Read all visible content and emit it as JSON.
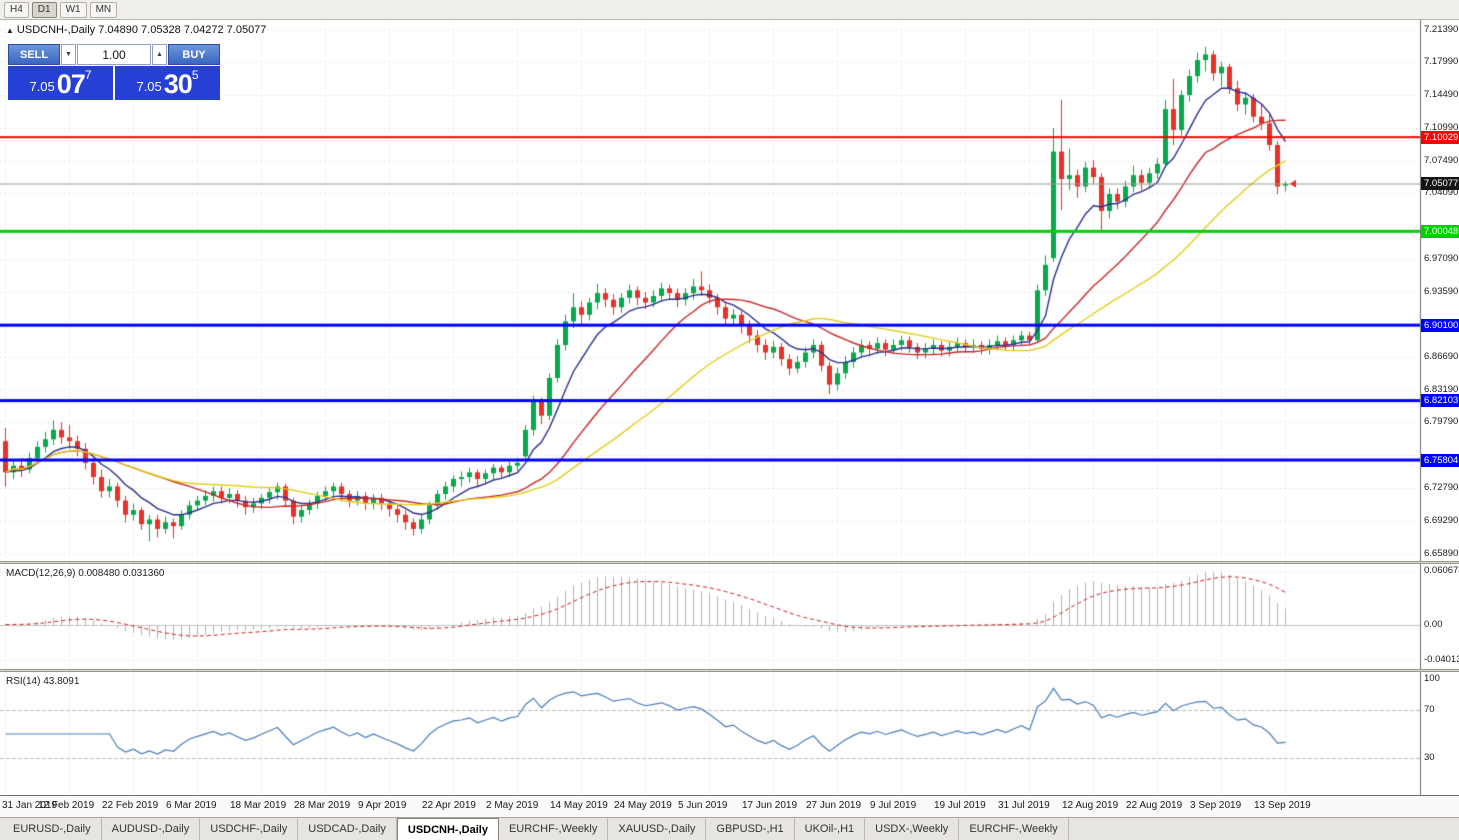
{
  "toolbar": {
    "buttons": [
      "H4",
      "D1",
      "W1",
      "MN"
    ],
    "active_index": 1
  },
  "chart": {
    "title": "USDCNH-,Daily 7.04890 7.05328 7.04272 7.05077"
  },
  "trade_panel": {
    "sell_label": "SELL",
    "buy_label": "BUY",
    "volume": "1.00",
    "sell_price": {
      "small": "7.05",
      "big": "07",
      "sup": "7"
    },
    "buy_price": {
      "small": "7.05",
      "big": "30",
      "sup": "5"
    }
  },
  "icons": {
    "collapse": "▲",
    "caret_down": "▼",
    "caret_up": "▲"
  },
  "chart_data": {
    "type": "candlestick",
    "symbol": "USDCNH-",
    "timeframe": "Daily",
    "current": {
      "open": "7.04890",
      "high": "7.05328",
      "low": "7.04272",
      "close": "7.05077"
    },
    "ylim": [
      6.651,
      7.2245
    ],
    "candle_colors": {
      "bull": "#09a84e",
      "bear": "#e5332a"
    },
    "y_axis_labels": [
      {
        "text": "7.21390",
        "value": 7.2139
      },
      {
        "text": "7.17990",
        "value": 7.1799
      },
      {
        "text": "7.14490",
        "value": 7.1449
      },
      {
        "text": "7.10990",
        "value": 7.1099
      },
      {
        "text": "7.07490",
        "value": 7.0749
      },
      {
        "text": "7.04090",
        "value": 7.0409
      },
      {
        "text": "6.97090",
        "value": 6.9709
      },
      {
        "text": "6.93590",
        "value": 6.9359
      },
      {
        "text": "6.86690",
        "value": 6.8669
      },
      {
        "text": "6.83190",
        "value": 6.8319
      },
      {
        "text": "6.79790",
        "value": 6.7979
      },
      {
        "text": "6.72790",
        "value": 6.7279
      },
      {
        "text": "6.69290",
        "value": 6.6929
      },
      {
        "text": "6.65890",
        "value": 6.6589
      }
    ],
    "y_grid": [
      7.2139,
      7.1799,
      7.1449,
      7.1099,
      7.0749,
      7.0409,
      7.0059,
      6.9709,
      6.9359,
      6.9009,
      6.8669,
      6.8319,
      6.7979,
      6.7629,
      6.7279,
      6.6929,
      6.6589
    ],
    "x_axis_labels": [
      {
        "text": "31 Jan 2019",
        "bar": 0
      },
      {
        "text": "12 Feb 2019",
        "bar": 8
      },
      {
        "text": "22 Feb 2019",
        "bar": 16
      },
      {
        "text": "6 Mar 2019",
        "bar": 24
      },
      {
        "text": "18 Mar 2019",
        "bar": 32
      },
      {
        "text": "28 Mar 2019",
        "bar": 40
      },
      {
        "text": "9 Apr 2019",
        "bar": 48
      },
      {
        "text": "22 Apr 2019",
        "bar": 56
      },
      {
        "text": "2 May 2019",
        "bar": 64
      },
      {
        "text": "14 May 2019",
        "bar": 72
      },
      {
        "text": "24 May 2019",
        "bar": 80
      },
      {
        "text": "5 Jun 2019",
        "bar": 88
      },
      {
        "text": "17 Jun 2019",
        "bar": 96
      },
      {
        "text": "27 Jun 2019",
        "bar": 104
      },
      {
        "text": "9 Jul 2019",
        "bar": 112
      },
      {
        "text": "19 Jul 2019",
        "bar": 120
      },
      {
        "text": "31 Jul 2019",
        "bar": 128
      },
      {
        "text": "12 Aug 2019",
        "bar": 136
      },
      {
        "text": "22 Aug 2019",
        "bar": 144
      },
      {
        "text": "3 Sep 2019",
        "bar": 152
      },
      {
        "text": "13 Sep 2019",
        "bar": 160
      }
    ],
    "levels": [
      {
        "label": "7.10029",
        "value": 7.10029,
        "color": "#ff0000",
        "width": 2
      },
      {
        "label": "7.00048",
        "value": 7.00048,
        "color": "#00cf00",
        "width": 3
      },
      {
        "label": "6.90100",
        "value": 6.901,
        "color": "#0000ff",
        "width": 3
      },
      {
        "label": "6.82103",
        "value": 6.82103,
        "color": "#0000ff",
        "width": 3
      },
      {
        "label": "6.75804",
        "value": 6.75804,
        "color": "#0000ff",
        "width": 3
      }
    ],
    "current_price_tag": {
      "label": "7.05077",
      "value": 7.05077,
      "bg": "#141414"
    },
    "overlays": [
      {
        "name": "ma-fast",
        "method": "ema",
        "period": 8,
        "color": "#2a3190"
      },
      {
        "name": "ma-mid",
        "method": "sma",
        "period": 20,
        "color": "#cc2a2a"
      },
      {
        "name": "ma-slow",
        "method": "sma",
        "period": 34,
        "color": "#e3cf1c"
      }
    ],
    "indicators": {
      "macd": {
        "label": "MACD(12,26,9) 0.008480 0.031360",
        "fast": 12,
        "slow": 26,
        "signal": 9,
        "axis": [
          {
            "text": "0.060674",
            "value": 0.060674
          },
          {
            "text": "0.00",
            "value": 0
          },
          {
            "text": "-0.040132",
            "value": -0.040132
          }
        ],
        "range": [
          -0.0503,
          0.0686
        ],
        "hist_color": "#b4b4b4",
        "signal_color": "#cc2222"
      },
      "rsi": {
        "label": "RSI(14) 43.8091",
        "period": 14,
        "value": 43.8091,
        "axis": [
          {
            "text": "100",
            "value": 100
          },
          {
            "text": "70",
            "value": 70
          },
          {
            "text": "30",
            "value": 30
          }
        ],
        "levels": [
          70,
          30
        ],
        "line_color": "#4a7ebb"
      }
    },
    "candles": [
      [
        6.778,
        6.792,
        6.73,
        6.745
      ],
      [
        6.745,
        6.758,
        6.738,
        6.752
      ],
      [
        6.752,
        6.76,
        6.74,
        6.748
      ],
      [
        6.748,
        6.766,
        6.744,
        6.76
      ],
      [
        6.76,
        6.778,
        6.755,
        6.772
      ],
      [
        6.772,
        6.788,
        6.766,
        6.78
      ],
      [
        6.78,
        6.8,
        6.774,
        6.79
      ],
      [
        6.79,
        6.798,
        6.775,
        6.782
      ],
      [
        6.782,
        6.795,
        6.77,
        6.778
      ],
      [
        6.778,
        6.784,
        6.762,
        6.77
      ],
      [
        6.77,
        6.776,
        6.748,
        6.755
      ],
      [
        6.755,
        6.76,
        6.732,
        6.74
      ],
      [
        6.74,
        6.748,
        6.718,
        6.725
      ],
      [
        6.725,
        6.738,
        6.718,
        6.73
      ],
      [
        6.73,
        6.734,
        6.708,
        6.715
      ],
      [
        6.715,
        6.72,
        6.692,
        6.7
      ],
      [
        6.7,
        6.712,
        6.694,
        6.705
      ],
      [
        6.705,
        6.708,
        6.684,
        6.69
      ],
      [
        6.69,
        6.7,
        6.672,
        6.695
      ],
      [
        6.695,
        6.7,
        6.676,
        6.685
      ],
      [
        6.685,
        6.698,
        6.68,
        6.692
      ],
      [
        6.692,
        6.696,
        6.675,
        6.688
      ],
      [
        6.688,
        6.705,
        6.684,
        6.7
      ],
      [
        6.7,
        6.715,
        6.695,
        6.71
      ],
      [
        6.71,
        6.72,
        6.704,
        6.715
      ],
      [
        6.715,
        6.726,
        6.71,
        6.72
      ],
      [
        6.72,
        6.73,
        6.714,
        6.725
      ],
      [
        6.725,
        6.73,
        6.712,
        6.718
      ],
      [
        6.718,
        6.728,
        6.712,
        6.722
      ],
      [
        6.722,
        6.726,
        6.708,
        6.715
      ],
      [
        6.715,
        6.72,
        6.7,
        6.708
      ],
      [
        6.708,
        6.718,
        6.702,
        6.712
      ],
      [
        6.712,
        6.722,
        6.706,
        6.718
      ],
      [
        6.718,
        6.728,
        6.712,
        6.724
      ],
      [
        6.724,
        6.734,
        6.716,
        6.73
      ],
      [
        6.73,
        6.733,
        6.708,
        6.715
      ],
      [
        6.715,
        6.718,
        6.69,
        6.698
      ],
      [
        6.698,
        6.71,
        6.692,
        6.705
      ],
      [
        6.705,
        6.716,
        6.7,
        6.712
      ],
      [
        6.712,
        6.724,
        6.706,
        6.72
      ],
      [
        6.72,
        6.73,
        6.714,
        6.725
      ],
      [
        6.725,
        6.734,
        6.718,
        6.73
      ],
      [
        6.73,
        6.734,
        6.714,
        6.722
      ],
      [
        6.722,
        6.726,
        6.708,
        6.715
      ],
      [
        6.715,
        6.725,
        6.71,
        6.72
      ],
      [
        6.72,
        6.724,
        6.705,
        6.712
      ],
      [
        6.712,
        6.722,
        6.706,
        6.718
      ],
      [
        6.718,
        6.722,
        6.705,
        6.712
      ],
      [
        6.712,
        6.716,
        6.698,
        6.706
      ],
      [
        6.706,
        6.71,
        6.692,
        6.7
      ],
      [
        6.7,
        6.705,
        6.684,
        6.692
      ],
      [
        6.692,
        6.696,
        6.678,
        6.685
      ],
      [
        6.685,
        6.7,
        6.68,
        6.695
      ],
      [
        6.695,
        6.714,
        6.69,
        6.71
      ],
      [
        6.71,
        6.726,
        6.705,
        6.722
      ],
      [
        6.722,
        6.735,
        6.716,
        6.73
      ],
      [
        6.73,
        6.742,
        6.724,
        6.738
      ],
      [
        6.738,
        6.746,
        6.73,
        6.74
      ],
      [
        6.74,
        6.75,
        6.734,
        6.745
      ],
      [
        6.745,
        6.748,
        6.73,
        6.738
      ],
      [
        6.738,
        6.748,
        6.732,
        6.744
      ],
      [
        6.744,
        6.754,
        6.738,
        6.75
      ],
      [
        6.75,
        6.753,
        6.738,
        6.745
      ],
      [
        6.745,
        6.756,
        6.74,
        6.752
      ],
      [
        6.752,
        6.76,
        6.746,
        6.755
      ],
      [
        6.762,
        6.795,
        6.758,
        6.79
      ],
      [
        6.79,
        6.826,
        6.784,
        6.82
      ],
      [
        6.82,
        6.824,
        6.796,
        6.805
      ],
      [
        6.805,
        6.85,
        6.8,
        6.845
      ],
      [
        6.845,
        6.886,
        6.84,
        6.88
      ],
      [
        6.88,
        6.912,
        6.874,
        6.905
      ],
      [
        6.905,
        6.935,
        6.898,
        6.92
      ],
      [
        6.92,
        6.926,
        6.9,
        6.912
      ],
      [
        6.912,
        6.93,
        6.906,
        6.925
      ],
      [
        6.925,
        6.945,
        6.918,
        6.935
      ],
      [
        6.935,
        6.94,
        6.92,
        6.928
      ],
      [
        6.928,
        6.934,
        6.912,
        6.92
      ],
      [
        6.92,
        6.935,
        6.914,
        6.93
      ],
      [
        6.93,
        6.944,
        6.924,
        6.938
      ],
      [
        6.938,
        6.942,
        6.922,
        6.93
      ],
      [
        6.93,
        6.936,
        6.918,
        6.925
      ],
      [
        6.925,
        6.938,
        6.92,
        6.932
      ],
      [
        6.932,
        6.946,
        6.926,
        6.94
      ],
      [
        6.94,
        6.944,
        6.928,
        6.935
      ],
      [
        6.935,
        6.94,
        6.92,
        6.928
      ],
      [
        6.928,
        6.94,
        6.922,
        6.935
      ],
      [
        6.935,
        6.95,
        6.928,
        6.942
      ],
      [
        6.942,
        6.958,
        6.932,
        6.938
      ],
      [
        6.938,
        6.944,
        6.924,
        6.93
      ],
      [
        6.93,
        6.934,
        6.912,
        6.92
      ],
      [
        6.92,
        6.926,
        6.9,
        6.908
      ],
      [
        6.908,
        6.918,
        6.902,
        6.912
      ],
      [
        6.912,
        6.916,
        6.892,
        6.9
      ],
      [
        6.9,
        6.906,
        6.882,
        6.89
      ],
      [
        6.89,
        6.896,
        6.872,
        6.88
      ],
      [
        6.88,
        6.886,
        6.864,
        6.872
      ],
      [
        6.872,
        6.884,
        6.866,
        6.878
      ],
      [
        6.878,
        6.882,
        6.858,
        6.865
      ],
      [
        6.865,
        6.87,
        6.848,
        6.855
      ],
      [
        6.855,
        6.868,
        6.85,
        6.862
      ],
      [
        6.862,
        6.878,
        6.856,
        6.872
      ],
      [
        6.872,
        6.886,
        6.866,
        6.88
      ],
      [
        6.88,
        6.884,
        6.852,
        6.858
      ],
      [
        6.858,
        6.862,
        6.828,
        6.838
      ],
      [
        6.838,
        6.856,
        6.832,
        6.85
      ],
      [
        6.85,
        6.868,
        6.844,
        6.862
      ],
      [
        6.862,
        6.878,
        6.856,
        6.872
      ],
      [
        6.872,
        6.886,
        6.866,
        6.88
      ],
      [
        6.88,
        6.884,
        6.868,
        6.876
      ],
      [
        6.876,
        6.888,
        6.87,
        6.882
      ],
      [
        6.882,
        6.886,
        6.868,
        6.875
      ],
      [
        6.875,
        6.886,
        6.87,
        6.88
      ],
      [
        6.88,
        6.89,
        6.874,
        6.885
      ],
      [
        6.885,
        6.889,
        6.872,
        6.878
      ],
      [
        6.878,
        6.882,
        6.865,
        6.872
      ],
      [
        6.872,
        6.882,
        6.866,
        6.876
      ],
      [
        6.876,
        6.886,
        6.87,
        6.88
      ],
      [
        6.88,
        6.884,
        6.868,
        6.874
      ],
      [
        6.874,
        6.884,
        6.868,
        6.878
      ],
      [
        6.878,
        6.888,
        6.872,
        6.882
      ],
      [
        6.882,
        6.886,
        6.872,
        6.878
      ],
      [
        6.878,
        6.886,
        6.872,
        6.88
      ],
      [
        6.88,
        6.884,
        6.87,
        6.876
      ],
      [
        6.876,
        6.886,
        6.87,
        6.88
      ],
      [
        6.88,
        6.89,
        6.874,
        6.884
      ],
      [
        6.884,
        6.888,
        6.874,
        6.88
      ],
      [
        6.88,
        6.89,
        6.874,
        6.885
      ],
      [
        6.885,
        6.895,
        6.879,
        6.89
      ],
      [
        6.89,
        6.894,
        6.88,
        6.885
      ],
      [
        6.885,
        6.944,
        6.882,
        6.938
      ],
      [
        6.938,
        6.975,
        6.932,
        6.965
      ],
      [
        6.972,
        7.11,
        6.968,
        7.085
      ],
      [
        7.085,
        7.14,
        7.023,
        7.056
      ],
      [
        7.056,
        7.088,
        7.044,
        7.06
      ],
      [
        7.06,
        7.066,
        7.036,
        7.048
      ],
      [
        7.048,
        7.074,
        7.042,
        7.068
      ],
      [
        7.068,
        7.076,
        7.05,
        7.058
      ],
      [
        7.058,
        7.062,
        7.0,
        7.022
      ],
      [
        7.022,
        7.046,
        7.014,
        7.04
      ],
      [
        7.04,
        7.046,
        7.024,
        7.032
      ],
      [
        7.032,
        7.054,
        7.026,
        7.048
      ],
      [
        7.048,
        7.07,
        7.042,
        7.06
      ],
      [
        7.06,
        7.066,
        7.044,
        7.052
      ],
      [
        7.052,
        7.068,
        7.046,
        7.062
      ],
      [
        7.062,
        7.078,
        7.056,
        7.072
      ],
      [
        7.072,
        7.14,
        7.068,
        7.13
      ],
      [
        7.13,
        7.162,
        7.092,
        7.108
      ],
      [
        7.108,
        7.15,
        7.102,
        7.145
      ],
      [
        7.145,
        7.172,
        7.138,
        7.165
      ],
      [
        7.165,
        7.19,
        7.158,
        7.182
      ],
      [
        7.182,
        7.196,
        7.17,
        7.188
      ],
      [
        7.188,
        7.192,
        7.16,
        7.168
      ],
      [
        7.168,
        7.18,
        7.154,
        7.175
      ],
      [
        7.175,
        7.178,
        7.146,
        7.152
      ],
      [
        7.152,
        7.16,
        7.128,
        7.135
      ],
      [
        7.135,
        7.148,
        7.124,
        7.142
      ],
      [
        7.142,
        7.146,
        7.116,
        7.122
      ],
      [
        7.122,
        7.136,
        7.108,
        7.115
      ],
      [
        7.115,
        7.124,
        7.086,
        7.092
      ],
      [
        7.092,
        7.096,
        7.04,
        7.048
      ],
      [
        7.0489,
        7.0533,
        7.0427,
        7.0508
      ]
    ]
  },
  "tabs": {
    "items": [
      "EURUSD-,Daily",
      "AUDUSD-,Daily",
      "USDCHF-,Daily",
      "USDCAD-,Daily",
      "USDCNH-,Daily",
      "EURCHF-,Weekly",
      "XAUUSD-,Daily",
      "GBPUSD-,H1",
      "UKOil-,H1",
      "USDX-,Weekly",
      "EURCHF-,Weekly"
    ],
    "active_index": 4
  }
}
